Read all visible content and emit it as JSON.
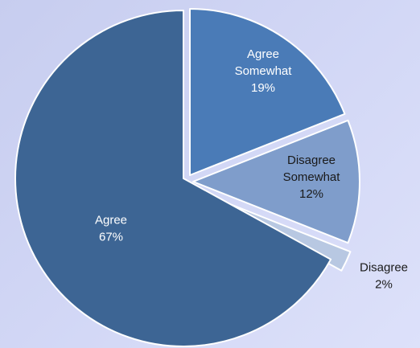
{
  "chart_data": {
    "type": "pie",
    "slices": [
      {
        "name_lines": [
          "Agree Somewhat"
        ],
        "label_lines": [
          "Agree",
          "Somewhat",
          "19%"
        ],
        "value": 19,
        "color": "#4a7bb7",
        "label_color": "#ffffff"
      },
      {
        "name_lines": [
          "Disagree Somewhat"
        ],
        "label_lines": [
          "Disagree",
          "Somewhat",
          "12%"
        ],
        "value": 12,
        "color": "#7f9dcb",
        "label_color": "#1a1a1a"
      },
      {
        "name_lines": [
          "Disagree"
        ],
        "label_lines": [
          "Disagree",
          "2%"
        ],
        "value": 2,
        "color": "#b8c8e2",
        "label_color": "#1a1a1a"
      },
      {
        "name_lines": [
          "Agree"
        ],
        "label_lines": [
          "Agree",
          "67%"
        ],
        "value": 67,
        "color": "#3d6594",
        "label_color": "#ffffff"
      }
    ]
  }
}
